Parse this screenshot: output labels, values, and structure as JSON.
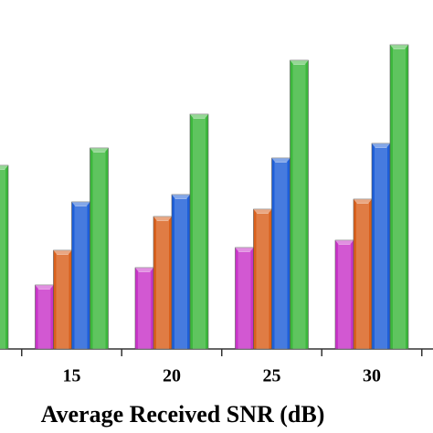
{
  "chart_data": {
    "type": "bar",
    "xlabel": "Average Received SNR (dB)",
    "categories": [
      null,
      "15",
      "20",
      "25",
      "30"
    ],
    "series": [
      {
        "color": "#c834c8",
        "values": [
          null,
          70,
          89,
          111,
          119
        ]
      },
      {
        "color": "#d9601c",
        "values": [
          null,
          108,
          145,
          153,
          164
        ]
      },
      {
        "color": "#1e5fd8",
        "values": [
          null,
          161,
          169,
          209,
          225
        ]
      },
      {
        "color": "#3cb83c",
        "values": [
          201,
          220,
          257,
          316,
          333
        ]
      }
    ]
  }
}
